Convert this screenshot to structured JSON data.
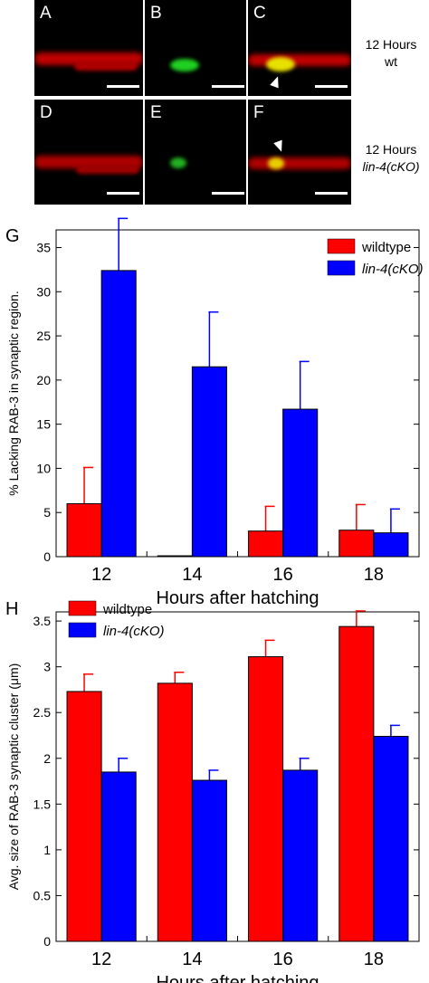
{
  "micrographs": {
    "rows": [
      {
        "label_line1": "12 Hours",
        "label_line2": "wt",
        "label_italic": false,
        "panels": [
          {
            "letter": "A"
          },
          {
            "letter": "B"
          },
          {
            "letter": "C"
          }
        ]
      },
      {
        "label_line1": "12 Hours",
        "label_line2": "lin-4(cKO)",
        "label_italic": true,
        "panels": [
          {
            "letter": "D"
          },
          {
            "letter": "E"
          },
          {
            "letter": "F"
          }
        ]
      }
    ]
  },
  "colors": {
    "wildtype": "#ff0000",
    "lin4": "#0000ff"
  },
  "chart_data": [
    {
      "letter": "G",
      "type": "bar",
      "categories": [
        "12",
        "14",
        "16",
        "18"
      ],
      "xlabel": "Hours after hatching",
      "ylabel": "% Lacking RAB-3 in synaptic region.",
      "ylim": [
        0,
        37
      ],
      "yticks": [
        "0",
        "5",
        "10",
        "15",
        "20",
        "25",
        "30",
        "35"
      ],
      "legend_position": "top-right",
      "series": [
        {
          "name": "wildtype",
          "italic": false,
          "values": [
            6.0,
            0.1,
            2.9,
            3.0
          ],
          "errors": [
            4.1,
            0,
            2.8,
            2.9
          ]
        },
        {
          "name": "lin-4(cKO)",
          "italic": true,
          "values": [
            32.4,
            21.5,
            16.7,
            2.7
          ],
          "errors": [
            5.9,
            6.2,
            5.4,
            2.7
          ]
        }
      ]
    },
    {
      "letter": "H",
      "type": "bar",
      "categories": [
        "12",
        "14",
        "16",
        "18"
      ],
      "xlabel": "Hours after hatching",
      "ylabel": "Avg. size of RAB-3 synaptic cluster (μm)",
      "ylim": [
        0,
        3.6
      ],
      "yticks": [
        "0",
        "0.5",
        "1",
        "1.5",
        "2",
        "2.5",
        "3",
        "3.5"
      ],
      "legend_position": "top-left",
      "series": [
        {
          "name": "wildtype",
          "italic": false,
          "values": [
            2.73,
            2.82,
            3.11,
            3.44
          ],
          "errors": [
            0.19,
            0.12,
            0.18,
            0.17
          ]
        },
        {
          "name": "lin-4(cKO)",
          "italic": true,
          "values": [
            1.85,
            1.76,
            1.87,
            2.24
          ],
          "errors": [
            0.15,
            0.11,
            0.13,
            0.12
          ]
        }
      ]
    }
  ]
}
